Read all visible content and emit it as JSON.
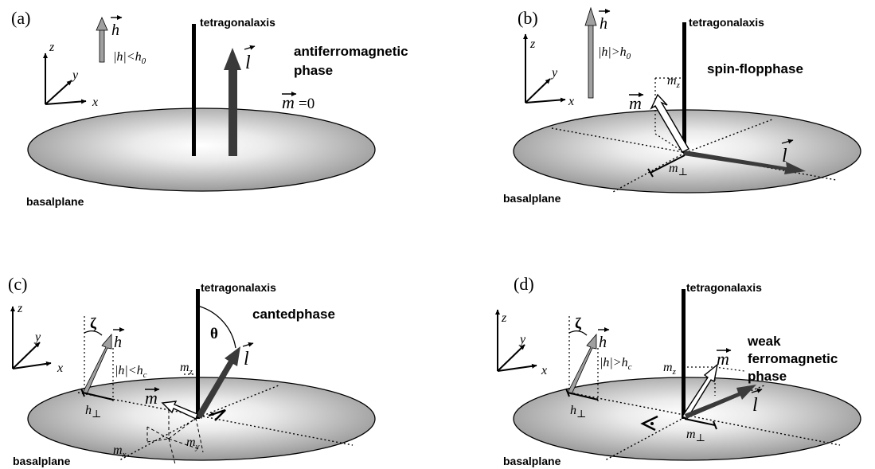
{
  "panels": {
    "a": {
      "label": "(a)",
      "axis_label": "tetragonalaxis",
      "plane_label": "basalplane",
      "phase_line1": "antiferromagnetic",
      "phase_line2": "phase",
      "field_condition": "|h|<h",
      "field_condition_sub": "0",
      "m_value": "=0",
      "vec_h": "h",
      "vec_l": "l",
      "vec_m": "m"
    },
    "b": {
      "label": "(b)",
      "axis_label": "tetragonalaxis",
      "plane_label": "basalplane",
      "phase_line1": "spin-flopphase",
      "field_condition": "|h|>h",
      "field_condition_sub": "0",
      "mz": "m",
      "mz_sub": "z",
      "mperp": "m",
      "mperp_sub": "⊥",
      "vec_h": "h",
      "vec_l": "l",
      "vec_m": "m"
    },
    "c": {
      "label": "(c)",
      "axis_label": "tetragonalaxis",
      "plane_label": "basalplane",
      "phase_line1": "cantedphase",
      "field_condition": "|h|<h",
      "field_condition_sub": "c",
      "theta": "θ",
      "zeta": "ζ",
      "hperp": "h",
      "hperp_sub": "⊥",
      "mz": "m",
      "mz_sub": "z",
      "mx": "m",
      "mx_sub": "x",
      "my": "m",
      "my_sub": "y",
      "vec_h": "h",
      "vec_l": "l",
      "vec_m": "m"
    },
    "d": {
      "label": "(d)",
      "axis_label": "tetragonalaxis",
      "plane_label": "basalplane",
      "phase_line1": "weak",
      "phase_line2": "ferromagnetic",
      "phase_line3": "phase",
      "field_condition": "|h|>h",
      "field_condition_sub": "c",
      "zeta": "ζ",
      "hperp": "h",
      "hperp_sub": "⊥",
      "mz": "m",
      "mz_sub": "z",
      "mperp": "m",
      "mperp_sub": "⊥",
      "vec_h": "h",
      "vec_l": "l",
      "vec_m": "m"
    }
  },
  "axes_labels": {
    "x": "x",
    "y": "y",
    "z": "z"
  }
}
